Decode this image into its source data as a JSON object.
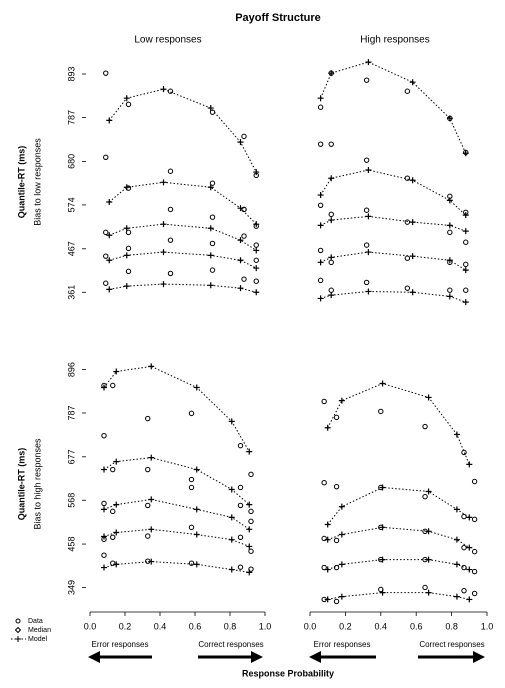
{
  "title": "Payoff Structure",
  "column_titles": [
    "Low responses",
    "High responses"
  ],
  "row_labels": [
    {
      "axis_label": "Quantile-RT (ms)",
      "label": "Bias to low responses"
    },
    {
      "axis_label": "Quantile-RT (ms)",
      "label": "Bias to high responses"
    }
  ],
  "legend": [
    "Data",
    "Median",
    "Model"
  ],
  "arrows": [
    "Error responses",
    "Correct responses"
  ],
  "xlabel": "Response Probability",
  "chart_data": [
    {
      "type": "line",
      "row": 0,
      "col": 0,
      "xlim": [
        0,
        1
      ],
      "ylim": [
        330,
        932
      ],
      "yticks": [
        361,
        467,
        574,
        680,
        787,
        893
      ],
      "model": {
        "x": [
          0.11,
          0.21,
          0.42,
          0.69,
          0.86,
          0.95
        ],
        "quantiles": [
          [
            368,
            376,
            381,
            378,
            371,
            361
          ],
          [
            439,
            451,
            459,
            451,
            439,
            420
          ],
          [
            500,
            517,
            527,
            517,
            488,
            463
          ],
          [
            581,
            617,
            629,
            617,
            566,
            527
          ],
          [
            780,
            834,
            856,
            810,
            727,
            654
          ]
        ]
      },
      "data": {
        "x": [
          0.09,
          0.22,
          0.46,
          0.7,
          0.88,
          0.95
        ],
        "quantiles": [
          [
            383,
            412,
            407,
            415,
            393,
            388
          ],
          [
            449,
            468,
            488,
            480,
            498,
            439
          ],
          [
            507,
            507,
            563,
            544,
            563,
            476
          ],
          [
            690,
            615,
            656,
            627,
            563,
            522
          ],
          [
            895,
            819,
            851,
            800,
            741,
            646
          ]
        ]
      }
    },
    {
      "type": "line",
      "row": 0,
      "col": 1,
      "xlim": [
        0,
        1
      ],
      "ylim": [
        330,
        932
      ],
      "model": {
        "x": [
          0.06,
          0.12,
          0.33,
          0.58,
          0.79,
          0.88
        ],
        "quantiles": [
          [
            346,
            354,
            363,
            361,
            351,
            337
          ],
          [
            434,
            446,
            459,
            449,
            439,
            415
          ],
          [
            524,
            537,
            546,
            532,
            524,
            510
          ],
          [
            598,
            639,
            659,
            634,
            585,
            549
          ],
          [
            834,
            895,
            922,
            873,
            785,
            700
          ]
        ]
      },
      "data": {
        "x": [
          0.06,
          0.12,
          0.32,
          0.55,
          0.79,
          0.88
        ],
        "quantiles": [
          [
            390,
            366,
            385,
            371,
            366,
            366
          ],
          [
            463,
            434,
            476,
            444,
            434,
            429
          ],
          [
            573,
            551,
            561,
            532,
            507,
            483
          ],
          [
            722,
            722,
            683,
            639,
            595,
            556
          ],
          [
            812,
            895,
            878,
            851,
            785,
            702
          ]
        ]
      }
    },
    {
      "type": "line",
      "row": 1,
      "col": 0,
      "xlim": [
        0,
        1
      ],
      "ylim": [
        300,
        920
      ],
      "yticks": [
        349,
        458,
        568,
        677,
        787,
        896
      ],
      "xticks": [
        {
          "value": 0,
          "label": "0.0"
        },
        0.2,
        0.4,
        0.6,
        0.8,
        {
          "value": 1,
          "label": "1.0"
        }
      ],
      "model": {
        "x": [
          0.08,
          0.15,
          0.35,
          0.61,
          0.81,
          0.91
        ],
        "quantiles": [
          [
            399,
            407,
            414,
            407,
            394,
            387
          ],
          [
            477,
            487,
            495,
            482,
            469,
            452
          ],
          [
            545,
            557,
            570,
            545,
            525,
            495
          ],
          [
            645,
            665,
            675,
            645,
            595,
            557
          ],
          [
            851,
            891,
            904,
            851,
            766,
            690
          ]
        ]
      },
      "data": {
        "x": [
          0.08,
          0.13,
          0.33,
          0.58,
          0.86,
          0.92
        ],
        "quantiles": [
          [
            430,
            410,
            415,
            410,
            400,
            395
          ],
          [
            470,
            475,
            478,
            500,
            475,
            440
          ],
          [
            560,
            540,
            555,
            600,
            555,
            515
          ],
          [
            730,
            645,
            645,
            620,
            600,
            540
          ],
          [
            856,
            856,
            773,
            786,
            705,
            633
          ]
        ]
      }
    },
    {
      "type": "line",
      "row": 1,
      "col": 1,
      "xlim": [
        0,
        1
      ],
      "ylim": [
        300,
        920
      ],
      "xticks": [
        {
          "value": 0,
          "label": "0.0"
        },
        0.2,
        0.4,
        0.6,
        0.8,
        {
          "value": 1,
          "label": "1.0"
        }
      ],
      "model": {
        "x": [
          0.1,
          0.18,
          0.41,
          0.67,
          0.83,
          0.9
        ],
        "quantiles": [
          [
            319,
            326,
            336,
            336,
            326,
            319
          ],
          [
            394,
            407,
            419,
            419,
            407,
            394
          ],
          [
            469,
            482,
            500,
            490,
            469,
            449
          ],
          [
            507,
            552,
            600,
            590,
            545,
            525
          ],
          [
            750,
            818,
            861,
            826,
            733,
            658
          ]
        ]
      },
      "data": {
        "x": [
          0.08,
          0.15,
          0.4,
          0.65,
          0.87,
          0.93
        ],
        "quantiles": [
          [
            319,
            314,
            344,
            349,
            341,
            334
          ],
          [
            399,
            399,
            419,
            419,
            399,
            389
          ],
          [
            472,
            467,
            500,
            490,
            449,
            439
          ],
          [
            612,
            602,
            600,
            577,
            527,
            520
          ],
          [
            816,
            776,
            791,
            753,
            688,
            615
          ]
        ]
      }
    }
  ]
}
